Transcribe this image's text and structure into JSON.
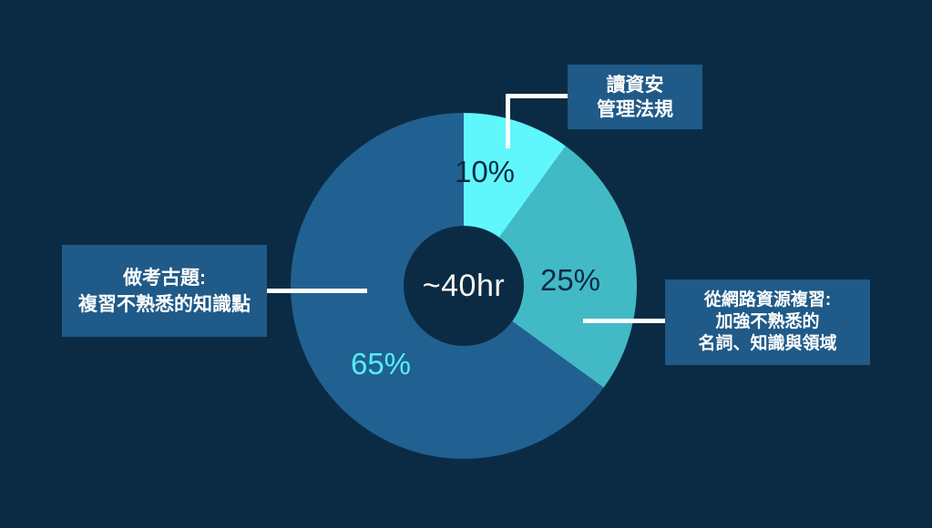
{
  "palette": {
    "background": "#0B2B45",
    "slice_cyan": "#5FF7FB",
    "slice_teal": "#42BAC5",
    "slice_blue": "#216191",
    "callout_box": "#1F5A88",
    "connector_line": "#FFFFFF",
    "pct_dark_text": "#0B2B45",
    "pct_cyan_text": "#55EEF5",
    "center_text": "#FAF7EF"
  },
  "chart_data": {
    "type": "pie",
    "subtype": "donut",
    "title": "",
    "categories": [
      "讀資安管理法規",
      "從網路資源複習: 加強不熟悉的名詞、知識與領域",
      "做考古題: 複習不熟悉的知識點"
    ],
    "values": [
      10,
      25,
      65
    ],
    "unit": "%",
    "colors": [
      "#5FF7FB",
      "#42BAC5",
      "#216191"
    ],
    "start_angle_deg": 0,
    "direction": "clockwise",
    "center_label": "~40hr",
    "hole_color": "#0B2B45",
    "legend_position": "none",
    "annotations": [
      "讀資安 管理法規",
      "做考古題: 複習不熟悉的知識點",
      "從網路資源複習: 加強不熟悉的 名詞、知識與領域"
    ]
  },
  "donut": {
    "center_label": "~40hr",
    "slices": [
      {
        "name": "讀資安管理法規",
        "pct_label": "10%"
      },
      {
        "name": "從網路資源複習",
        "pct_label": "25%"
      },
      {
        "name": "做考古題",
        "pct_label": "65%"
      }
    ]
  },
  "callouts": {
    "top": {
      "line1": "讀資安",
      "line2": "管理法規"
    },
    "left": {
      "line1": "做考古題:",
      "line2": "複習不熟悉的知識點"
    },
    "right": {
      "line1": "從網路資源複習:",
      "line2": "加強不熟悉的",
      "line3": "名詞、知識與領域"
    }
  }
}
